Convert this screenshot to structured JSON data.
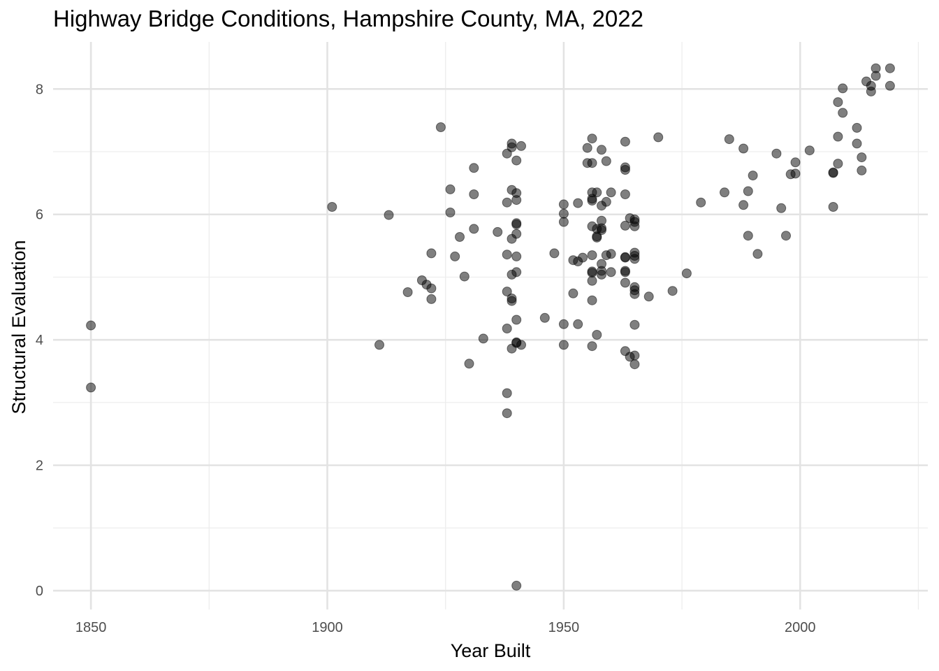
{
  "chart_data": {
    "type": "scatter",
    "title": "Highway Bridge Conditions, Hampshire County, MA, 2022",
    "xlabel": "Year Built",
    "ylabel": "Structural Evaluation",
    "xlim": [
      1842,
      2027
    ],
    "ylim": [
      -0.3,
      8.75
    ],
    "x_ticks": [
      1850,
      1900,
      1950,
      2000
    ],
    "y_ticks": [
      0,
      2,
      4,
      6,
      8
    ],
    "grid": true,
    "point_color": "#000000",
    "point_opacity": 0.5,
    "points": [
      [
        1850,
        4.23
      ],
      [
        1850,
        3.24
      ],
      [
        1901,
        6.12
      ],
      [
        1911,
        3.92
      ],
      [
        1913,
        5.99
      ],
      [
        1917,
        4.76
      ],
      [
        1920,
        4.95
      ],
      [
        1921,
        4.88
      ],
      [
        1922,
        4.82
      ],
      [
        1922,
        4.65
      ],
      [
        1922,
        5.38
      ],
      [
        1924,
        7.39
      ],
      [
        1926,
        6.4
      ],
      [
        1926,
        6.03
      ],
      [
        1927,
        5.33
      ],
      [
        1928,
        5.64
      ],
      [
        1929,
        5.01
      ],
      [
        1930,
        3.62
      ],
      [
        1931,
        6.74
      ],
      [
        1931,
        6.32
      ],
      [
        1931,
        5.77
      ],
      [
        1933,
        4.02
      ],
      [
        1936,
        5.72
      ],
      [
        1938,
        6.97
      ],
      [
        1938,
        5.36
      ],
      [
        1938,
        4.18
      ],
      [
        1938,
        3.15
      ],
      [
        1938,
        2.83
      ],
      [
        1938,
        6.19
      ],
      [
        1938,
        4.77
      ],
      [
        1939,
        6.39
      ],
      [
        1939,
        4.62
      ],
      [
        1939,
        3.86
      ],
      [
        1939,
        5.04
      ],
      [
        1939,
        7.13
      ],
      [
        1939,
        7.07
      ],
      [
        1939,
        5.61
      ],
      [
        1939,
        4.66
      ],
      [
        1940,
        6.86
      ],
      [
        1940,
        5.84
      ],
      [
        1940,
        5.33
      ],
      [
        1940,
        4.32
      ],
      [
        1940,
        3.96
      ],
      [
        1940,
        6.34
      ],
      [
        1940,
        6.23
      ],
      [
        1940,
        5.86
      ],
      [
        1940,
        5.69
      ],
      [
        1940,
        5.08
      ],
      [
        1940,
        3.95
      ],
      [
        1940,
        0.08
      ],
      [
        1941,
        7.09
      ],
      [
        1941,
        3.92
      ],
      [
        1946,
        4.35
      ],
      [
        1948,
        5.38
      ],
      [
        1950,
        4.25
      ],
      [
        1950,
        6.01
      ],
      [
        1950,
        5.88
      ],
      [
        1950,
        3.92
      ],
      [
        1950,
        6.16
      ],
      [
        1952,
        5.27
      ],
      [
        1952,
        4.74
      ],
      [
        1953,
        5.25
      ],
      [
        1953,
        6.18
      ],
      [
        1953,
        4.25
      ],
      [
        1954,
        5.31
      ],
      [
        1955,
        6.82
      ],
      [
        1955,
        7.06
      ],
      [
        1956,
        7.21
      ],
      [
        1956,
        6.82
      ],
      [
        1956,
        6.22
      ],
      [
        1956,
        6.25
      ],
      [
        1956,
        6.35
      ],
      [
        1956,
        5.81
      ],
      [
        1956,
        5.35
      ],
      [
        1956,
        5.09
      ],
      [
        1956,
        5.07
      ],
      [
        1956,
        4.94
      ],
      [
        1956,
        4.63
      ],
      [
        1956,
        3.9
      ],
      [
        1957,
        6.35
      ],
      [
        1957,
        5.77
      ],
      [
        1957,
        5.63
      ],
      [
        1957,
        5.65
      ],
      [
        1957,
        4.08
      ],
      [
        1958,
        5.9
      ],
      [
        1958,
        5.78
      ],
      [
        1958,
        5.75
      ],
      [
        1958,
        5.21
      ],
      [
        1958,
        5.1
      ],
      [
        1958,
        5.04
      ],
      [
        1958,
        6.14
      ],
      [
        1958,
        7.03
      ],
      [
        1959,
        6.85
      ],
      [
        1959,
        6.2
      ],
      [
        1959,
        5.35
      ],
      [
        1960,
        6.35
      ],
      [
        1960,
        5.37
      ],
      [
        1960,
        5.08
      ],
      [
        1963,
        7.16
      ],
      [
        1963,
        6.71
      ],
      [
        1963,
        6.75
      ],
      [
        1963,
        6.32
      ],
      [
        1963,
        5.82
      ],
      [
        1963,
        5.32
      ],
      [
        1963,
        5.31
      ],
      [
        1963,
        5.1
      ],
      [
        1963,
        5.08
      ],
      [
        1963,
        4.91
      ],
      [
        1963,
        3.82
      ],
      [
        1964,
        5.94
      ],
      [
        1964,
        3.73
      ],
      [
        1965,
        5.92
      ],
      [
        1965,
        5.88
      ],
      [
        1965,
        5.81
      ],
      [
        1965,
        5.39
      ],
      [
        1965,
        5.29
      ],
      [
        1965,
        5.34
      ],
      [
        1965,
        4.84
      ],
      [
        1965,
        4.73
      ],
      [
        1965,
        4.24
      ],
      [
        1965,
        4.79
      ],
      [
        1965,
        3.75
      ],
      [
        1965,
        3.61
      ],
      [
        1968,
        4.69
      ],
      [
        1970,
        7.23
      ],
      [
        1973,
        4.78
      ],
      [
        1976,
        5.06
      ],
      [
        1979,
        6.19
      ],
      [
        1984,
        6.35
      ],
      [
        1985,
        7.2
      ],
      [
        1988,
        7.05
      ],
      [
        1988,
        6.15
      ],
      [
        1989,
        6.37
      ],
      [
        1989,
        5.66
      ],
      [
        1990,
        6.62
      ],
      [
        1991,
        5.37
      ],
      [
        1995,
        6.97
      ],
      [
        1996,
        6.1
      ],
      [
        1997,
        5.66
      ],
      [
        1998,
        6.64
      ],
      [
        1999,
        6.65
      ],
      [
        1999,
        6.83
      ],
      [
        2002,
        7.02
      ],
      [
        2007,
        6.12
      ],
      [
        2007,
        6.66
      ],
      [
        2007,
        6.67
      ],
      [
        2008,
        7.79
      ],
      [
        2008,
        7.24
      ],
      [
        2008,
        6.81
      ],
      [
        2009,
        8.01
      ],
      [
        2009,
        7.62
      ],
      [
        2012,
        7.38
      ],
      [
        2012,
        7.13
      ],
      [
        2013,
        6.91
      ],
      [
        2013,
        6.7
      ],
      [
        2014,
        8.12
      ],
      [
        2015,
        7.96
      ],
      [
        2015,
        8.05
      ],
      [
        2016,
        8.33
      ],
      [
        2016,
        8.21
      ],
      [
        2019,
        8.05
      ],
      [
        2019,
        8.33
      ]
    ]
  }
}
